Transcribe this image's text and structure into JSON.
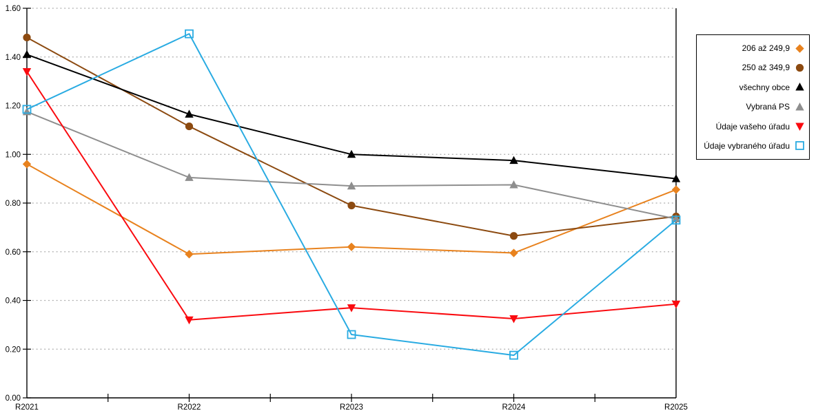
{
  "chart_data": {
    "type": "line",
    "x_labels": [
      "R2021",
      "R2022",
      "R2023",
      "R2024",
      "R2025"
    ],
    "y_ticks": [
      "1.60",
      "1.40",
      "1.20",
      "1.00",
      "0.80",
      "0.60",
      "0.40",
      "0.20",
      "0.00"
    ],
    "ylim": [
      0,
      1.6
    ],
    "grid": "horizontal-dotted",
    "legend_position": "right",
    "background_color": "#FFFFFF",
    "axis_color": "#000000",
    "grid_color": "#ADADAD",
    "series": [
      {
        "name": "206 až 249,9",
        "marker": "diamond",
        "color": "#E8821E",
        "values": [
          0.96,
          0.59,
          0.62,
          0.595,
          0.855
        ]
      },
      {
        "name": "250 až 349,9",
        "marker": "circle",
        "color": "#8C4A10",
        "values": [
          1.48,
          1.115,
          0.79,
          0.665,
          0.745
        ]
      },
      {
        "name": "všechny obce",
        "marker": "triangle-up",
        "color": "#000000",
        "values": [
          1.41,
          1.165,
          1.0,
          0.975,
          0.9
        ]
      },
      {
        "name": "Vybraná PS",
        "marker": "triangle-up",
        "color": "#8E8E8E",
        "values": [
          1.175,
          0.905,
          0.87,
          0.875,
          0.735
        ]
      },
      {
        "name": "Údaje vašeho úřadu",
        "marker": "triangle-down",
        "color": "#FA0A0F",
        "values": [
          1.34,
          0.32,
          0.37,
          0.325,
          0.385
        ]
      },
      {
        "name": "Údaje vybraného úřadu",
        "marker": "square-open",
        "color": "#29ABE2",
        "values": [
          1.185,
          1.495,
          0.26,
          0.175,
          0.73
        ]
      }
    ]
  }
}
